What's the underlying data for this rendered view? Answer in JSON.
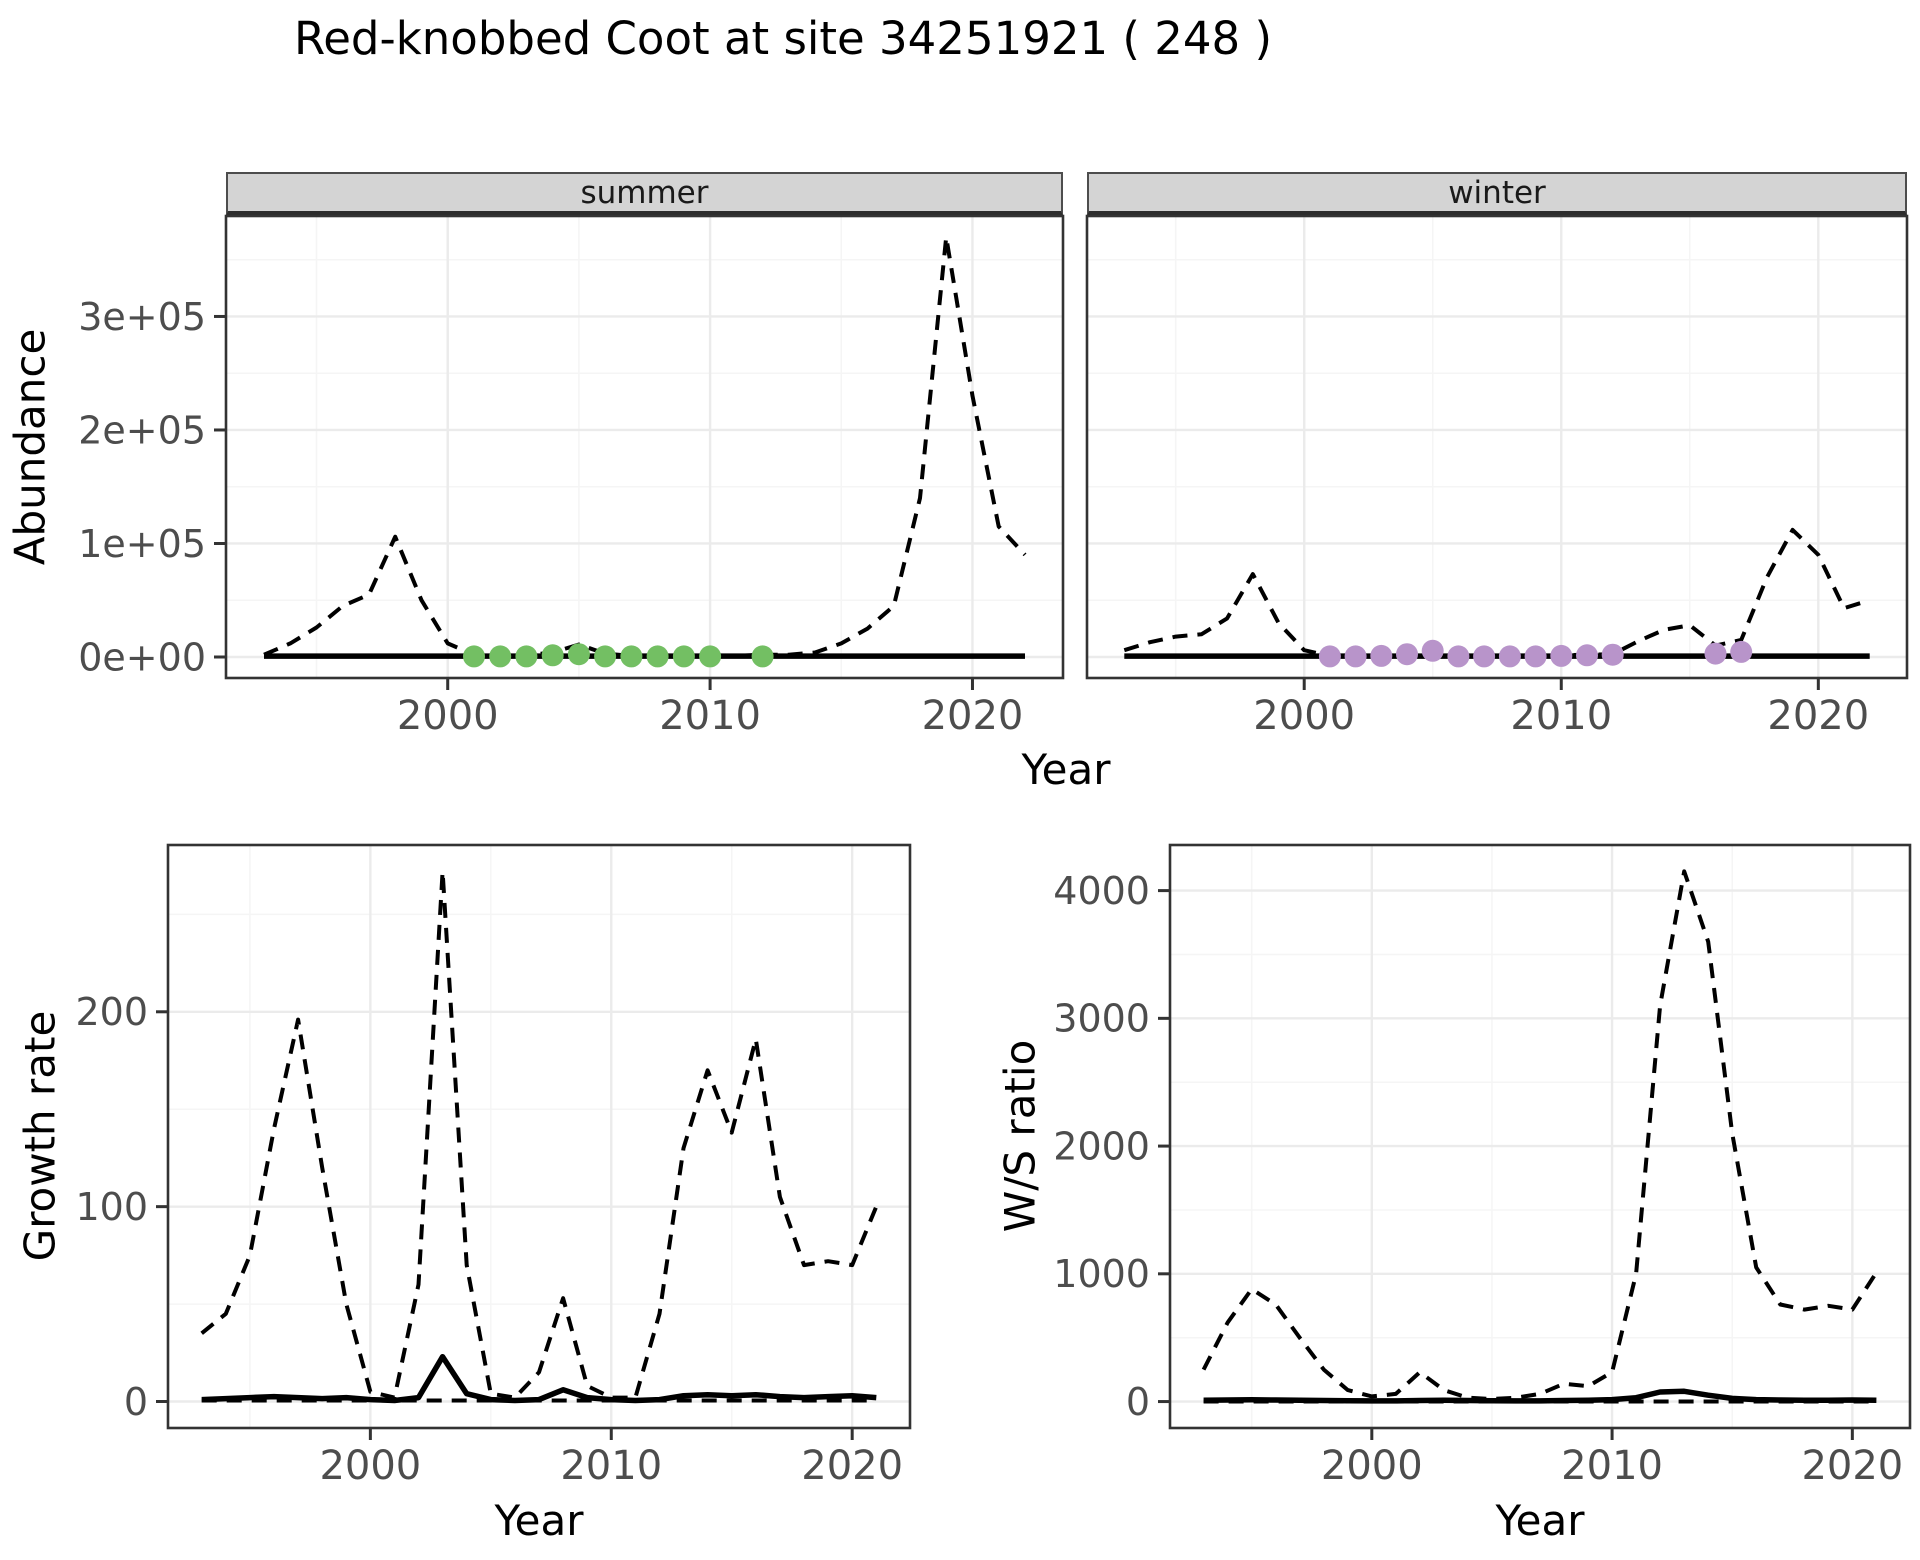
{
  "title": "Red-knobbed Coot at site 34251921 ( 248 )",
  "facets": {
    "summer": "summer",
    "winter": "winter"
  },
  "labels": {
    "abundance": "Abundance",
    "year": "Year",
    "growth_rate": "Growth rate",
    "ws_ratio": "W/S ratio"
  },
  "colors": {
    "summer_point": "#73BF63",
    "winter_point": "#B894CA",
    "line": "#000000",
    "grid_major": "#EBEBEB",
    "grid_minor": "#F5F5F5",
    "panel_border": "#333333",
    "tick_mark": "#333333",
    "tick_label": "#4D4D4D",
    "strip_bg": "#D4D4D4"
  },
  "chart_data": [
    {
      "id": "abundance_summer",
      "type": "line",
      "facet": "summer",
      "xlabel": "Year",
      "ylabel": "Abundance",
      "xlim": [
        1991.55,
        2023.45
      ],
      "ylim": [
        -18500,
        388500
      ],
      "xticks": [
        2000,
        2010,
        2020
      ],
      "xminor": [
        1995,
        2005,
        2015
      ],
      "yticks": {
        "values": [
          0,
          100000,
          200000,
          300000
        ],
        "labels": [
          "0e+00",
          "1e+05",
          "2e+05",
          "3e+05"
        ]
      },
      "yminor": [
        50000,
        150000,
        250000,
        350000
      ],
      "years": [
        1993,
        1994,
        1995,
        1996,
        1997,
        1998,
        1999,
        2000,
        2001,
        2002,
        2003,
        2004,
        2005,
        2006,
        2007,
        2008,
        2009,
        2010,
        2011,
        2012,
        2013,
        2014,
        2015,
        2016,
        2017,
        2018,
        2019,
        2020,
        2021,
        2022
      ],
      "series": [
        {
          "name": "observed-dashed",
          "style": "dashed",
          "values": [
            2000,
            12000,
            26000,
            45000,
            55000,
            106000,
            50000,
            12000,
            2000,
            1000,
            1500,
            4000,
            11000,
            3000,
            1000,
            1000,
            1000,
            1000,
            1000,
            2000,
            2000,
            4000,
            12000,
            25000,
            45000,
            140000,
            370000,
            230000,
            115000,
            90000
          ]
        },
        {
          "name": "modelled-solid",
          "style": "solid",
          "values": [
            800,
            800,
            800,
            800,
            800,
            800,
            800,
            800,
            800,
            800,
            800,
            800,
            800,
            800,
            800,
            800,
            800,
            800,
            800,
            800,
            800,
            800,
            800,
            800,
            800,
            800,
            800,
            800,
            800,
            800
          ]
        }
      ],
      "points": {
        "name": "flagged-years",
        "color": "summer_point",
        "years": [
          2001,
          2002,
          2003,
          2004,
          2005,
          2006,
          2007,
          2008,
          2009,
          2010,
          2012
        ],
        "values": [
          500,
          500,
          500,
          1500,
          2500,
          500,
          500,
          500,
          500,
          500,
          500
        ]
      }
    },
    {
      "id": "abundance_winter",
      "type": "line",
      "facet": "winter",
      "xlabel": "Year",
      "ylabel": "Abundance",
      "xlim": [
        1991.55,
        2023.45
      ],
      "ylim": [
        -18500,
        388500
      ],
      "xticks": [
        2000,
        2010,
        2020
      ],
      "xminor": [
        1995,
        2005,
        2015
      ],
      "yticks": {
        "values": [
          0,
          100000,
          200000,
          300000
        ],
        "labels": []
      },
      "yminor": [
        50000,
        150000,
        250000,
        350000
      ],
      "years": [
        1993,
        1994,
        1995,
        1996,
        1997,
        1998,
        1999,
        2000,
        2001,
        2002,
        2003,
        2004,
        2005,
        2006,
        2007,
        2008,
        2009,
        2010,
        2011,
        2012,
        2013,
        2014,
        2015,
        2016,
        2017,
        2018,
        2019,
        2020,
        2021,
        2022
      ],
      "series": [
        {
          "name": "observed-dashed",
          "style": "dashed",
          "values": [
            6000,
            13000,
            18000,
            20000,
            34000,
            73000,
            30000,
            6000,
            1000,
            1000,
            2000,
            4000,
            9000,
            2000,
            1000,
            1000,
            1000,
            1500,
            2000,
            2500,
            14000,
            24000,
            28000,
            10000,
            15000,
            70000,
            112000,
            90000,
            43000,
            50000
          ]
        },
        {
          "name": "modelled-solid",
          "style": "solid",
          "values": [
            800,
            800,
            800,
            800,
            800,
            800,
            800,
            800,
            800,
            800,
            800,
            800,
            800,
            800,
            800,
            800,
            800,
            800,
            800,
            800,
            800,
            800,
            800,
            800,
            800,
            800,
            800,
            800,
            800,
            800
          ]
        }
      ],
      "points": {
        "name": "flagged-years",
        "color": "winter_point",
        "years": [
          2001,
          2002,
          2003,
          2004,
          2005,
          2006,
          2007,
          2008,
          2009,
          2010,
          2011,
          2012,
          2016,
          2017
        ],
        "values": [
          500,
          500,
          1000,
          2500,
          5500,
          500,
          500,
          500,
          500,
          1000,
          1500,
          2000,
          3000,
          4500
        ]
      }
    },
    {
      "id": "growth_rate",
      "type": "line",
      "facet": "",
      "xlabel": "Year",
      "ylabel": "Growth rate",
      "xlim": [
        1991.6,
        2022.4
      ],
      "ylim": [
        -13.6,
        285.6
      ],
      "xticks": [
        2000,
        2010,
        2020
      ],
      "xminor": [
        1995,
        2005,
        2015
      ],
      "yticks": {
        "values": [
          0,
          100,
          200
        ],
        "labels": [
          "0",
          "100",
          "200"
        ]
      },
      "yminor": [
        50,
        150,
        250
      ],
      "years": [
        1993,
        1994,
        1995,
        1996,
        1997,
        1998,
        1999,
        2000,
        2001,
        2002,
        2003,
        2004,
        2005,
        2006,
        2007,
        2008,
        2009,
        2010,
        2011,
        2012,
        2013,
        2014,
        2015,
        2016,
        2017,
        2018,
        2019,
        2020,
        2021
      ],
      "series": [
        {
          "name": "observed-dashed",
          "style": "dashed",
          "values": [
            35,
            45,
            75,
            140,
            196,
            120,
            50,
            5,
            2,
            60,
            272,
            70,
            4,
            2,
            15,
            53,
            8,
            2,
            2,
            45,
            130,
            170,
            138,
            186,
            105,
            70,
            72,
            70,
            100
          ]
        },
        {
          "name": "baseline-dashed",
          "style": "dashed",
          "values": [
            0.5,
            0.5,
            0.5,
            0.5,
            0.5,
            0.5,
            0.5,
            0.5,
            0.5,
            0.5,
            0.5,
            0.5,
            0.5,
            0.5,
            0.5,
            0.5,
            0.5,
            0.5,
            0.5,
            0.5,
            0.5,
            0.5,
            0.5,
            0.5,
            0.5,
            0.5,
            0.5,
            0.5,
            0.5
          ]
        },
        {
          "name": "modelled-solid",
          "style": "solid",
          "values": [
            1,
            1.5,
            2,
            2.5,
            2,
            1.5,
            2,
            1,
            0.5,
            2,
            23,
            4,
            1,
            0.5,
            1,
            6,
            2,
            1,
            0.5,
            1,
            3,
            3.5,
            3,
            3.5,
            2.5,
            2,
            2.5,
            3,
            2
          ]
        }
      ]
    },
    {
      "id": "ws_ratio",
      "type": "line",
      "facet": "",
      "xlabel": "Year",
      "ylabel": "W/S ratio",
      "xlim": [
        1991.6,
        2022.4
      ],
      "ylim": [
        -207,
        4357
      ],
      "xticks": [
        2000,
        2010,
        2020
      ],
      "xminor": [
        1995,
        2005,
        2015
      ],
      "yticks": {
        "values": [
          0,
          1000,
          2000,
          3000,
          4000
        ],
        "labels": [
          "0",
          "1000",
          "2000",
          "3000",
          "4000"
        ]
      },
      "yminor": [
        500,
        1500,
        2500,
        3500
      ],
      "years": [
        1993,
        1994,
        1995,
        1996,
        1997,
        1998,
        1999,
        2000,
        2001,
        2002,
        2003,
        2004,
        2005,
        2006,
        2007,
        2008,
        2009,
        2010,
        2011,
        2012,
        2013,
        2014,
        2015,
        2016,
        2017,
        2018,
        2019,
        2020,
        2021
      ],
      "series": [
        {
          "name": "observed-dashed",
          "style": "dashed",
          "values": [
            250,
            620,
            880,
            760,
            500,
            250,
            90,
            40,
            60,
            230,
            90,
            30,
            20,
            30,
            60,
            140,
            120,
            230,
            1000,
            3100,
            4150,
            3600,
            2100,
            1050,
            760,
            720,
            750,
            720,
            1010
          ]
        },
        {
          "name": "baseline-dashed",
          "style": "dashed",
          "values": [
            0.5,
            0.5,
            0.5,
            0.5,
            0.5,
            0.5,
            0.5,
            0.5,
            0.5,
            0.5,
            0.5,
            0.5,
            0.5,
            0.5,
            0.5,
            0.5,
            0.5,
            0.5,
            0.5,
            0.5,
            0.5,
            0.5,
            0.5,
            0.5,
            0.5,
            0.5,
            0.5,
            0.5,
            0.5
          ]
        },
        {
          "name": "modelled-solid",
          "style": "solid",
          "values": [
            10,
            12,
            14,
            12,
            10,
            8,
            6,
            5,
            5,
            8,
            10,
            8,
            6,
            5,
            5,
            8,
            10,
            15,
            30,
            75,
            80,
            50,
            25,
            15,
            12,
            10,
            10,
            12,
            10
          ]
        }
      ]
    }
  ]
}
